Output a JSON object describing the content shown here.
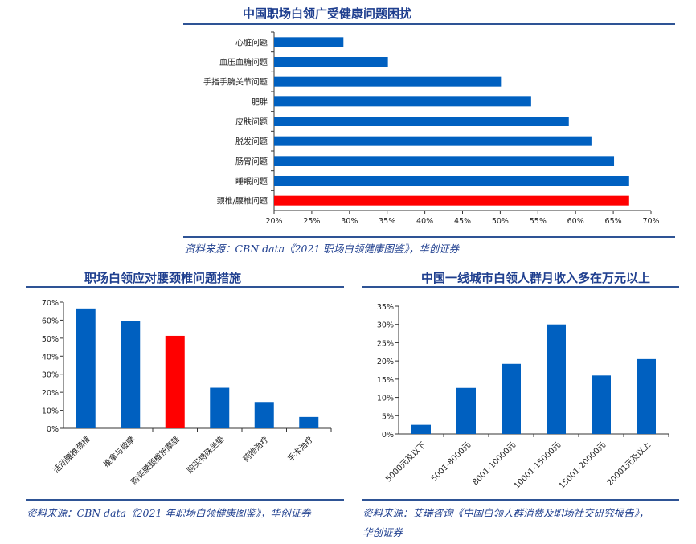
{
  "chart_data": [
    {
      "type": "bar",
      "orientation": "horizontal",
      "title": "中国职场白领广受健康问题困扰",
      "categories": [
        "心脏问题",
        "血压血糖问题",
        "手指手腕关节问题",
        "肥胖",
        "皮肤问题",
        "脱发问题",
        "肠胃问题",
        "睡眠问题",
        "颈椎/腰椎问题"
      ],
      "values": [
        29.2,
        35.1,
        50.1,
        54.1,
        59.1,
        62.1,
        65.1,
        67.1,
        67.1
      ],
      "highlight_index": 8,
      "xlim": [
        20,
        70
      ],
      "ticks": [
        "20%",
        "25%",
        "30%",
        "35%",
        "40%",
        "45%",
        "50%",
        "55%",
        "60%",
        "65%",
        "70%"
      ],
      "xlabel": "",
      "ylabel": "",
      "source": "资料来源：CBN data《2021 职场白领健康图鉴》，华创证券"
    },
    {
      "type": "bar",
      "title": "职场白领应对腰颈椎问题措施",
      "categories": [
        "活动腰椎颈椎",
        "推拿与按摩",
        "购买腰颈椎按摩器",
        "购买特殊坐垫",
        "药物治疗",
        "手术治疗"
      ],
      "values": [
        66.5,
        59.3,
        51.3,
        22.5,
        14.6,
        6.3
      ],
      "highlight_index": 2,
      "ylim": [
        0,
        70
      ],
      "ticks": [
        "0%",
        "10%",
        "20%",
        "30%",
        "40%",
        "50%",
        "60%",
        "70%"
      ],
      "xlabel": "",
      "ylabel": "",
      "source": "资料来源：CBN data《2021 年职场白领健康图鉴》，华创证券"
    },
    {
      "type": "bar",
      "title": "中国一线城市白领人群月收入多在万元以上",
      "categories": [
        "5000元及以下",
        "5001-8000元",
        "8001-10000元",
        "10001-15000元",
        "15001-20000元",
        "20001元及以上"
      ],
      "values": [
        2.5,
        12.6,
        19.2,
        30.0,
        16.0,
        20.5
      ],
      "highlight_index": -1,
      "ylim": [
        0,
        35
      ],
      "ticks": [
        "0%",
        "5%",
        "10%",
        "15%",
        "20%",
        "25%",
        "30%",
        "35%"
      ],
      "xlabel": "",
      "ylabel": "",
      "source": "资料来源：艾瑞咨询《中国白领人群消费及职场社交研究报告》，",
      "source_line2": "华创证券"
    }
  ],
  "colors": {
    "bar": "#0060c0",
    "highlight": "#ff0000",
    "title": "#1f3f8f",
    "rule": "#2e5395"
  }
}
